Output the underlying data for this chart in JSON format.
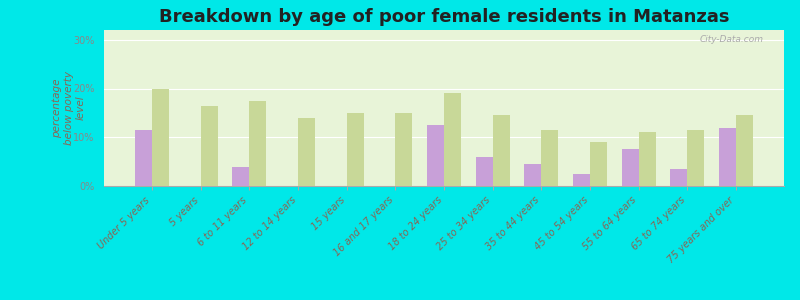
{
  "title": "Breakdown by age of poor female residents in Matanzas",
  "ylabel": "percentage\nbelow poverty\nlevel",
  "categories": [
    "Under 5 years",
    "5 years",
    "6 to 11 years",
    "12 to 14 years",
    "15 years",
    "16 and 17 years",
    "18 to 24 years",
    "25 to 34 years",
    "35 to 44 years",
    "45 to 54 years",
    "55 to 64 years",
    "65 to 74 years",
    "75 years and over"
  ],
  "matanzas": [
    11.5,
    0,
    4.0,
    0,
    0,
    0,
    12.5,
    6.0,
    4.5,
    2.5,
    7.5,
    3.5,
    12.0
  ],
  "florida": [
    20.0,
    16.5,
    17.5,
    14.0,
    15.0,
    15.0,
    19.0,
    14.5,
    11.5,
    9.0,
    11.0,
    11.5,
    14.5
  ],
  "matanzas_color": "#c8a0d8",
  "florida_color": "#c8d898",
  "background_color": "#e8f4d8",
  "outer_background": "#00e8e8",
  "ylim": [
    0,
    32
  ],
  "yticks": [
    0,
    10,
    20,
    30
  ],
  "ytick_labels": [
    "0%",
    "10%",
    "20%",
    "30%"
  ],
  "title_fontsize": 13,
  "axis_label_fontsize": 7.5,
  "tick_fontsize": 7.0,
  "watermark": "City-Data.com",
  "ylabel_color": "#886655",
  "xtick_color": "#886655",
  "ytick_color": "#888888"
}
